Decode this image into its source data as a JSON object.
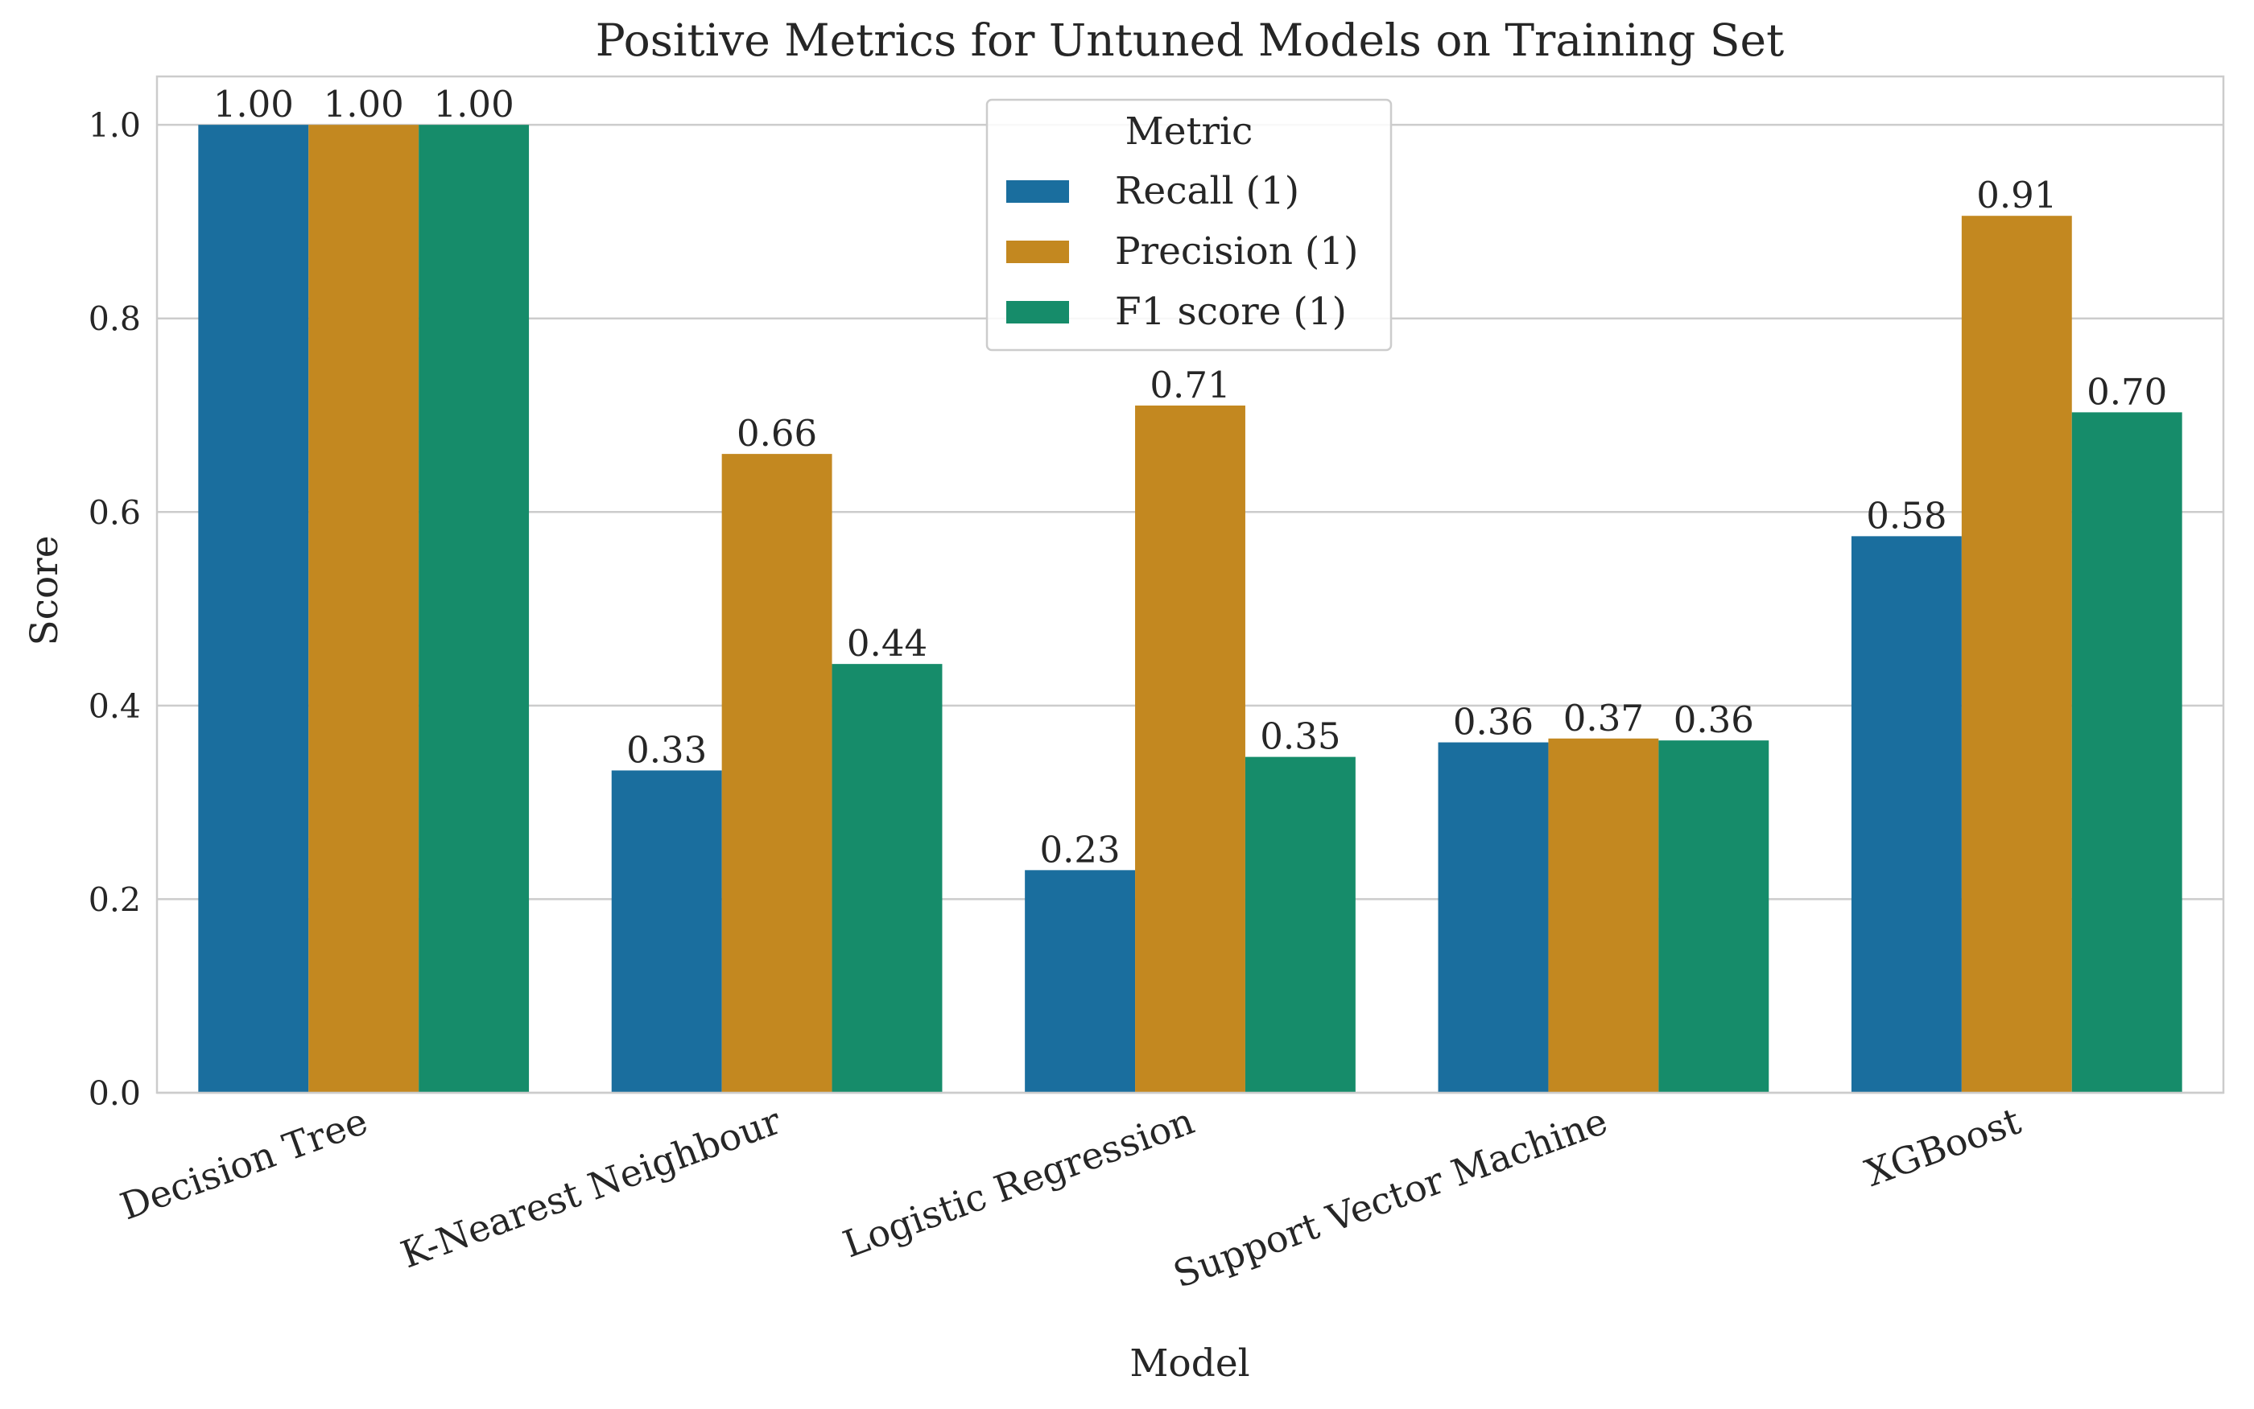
{
  "chart_data": {
    "type": "bar",
    "title": "Positive Metrics for Untuned Models on Training Set",
    "xlabel": "Model",
    "ylabel": "Score",
    "ylim": [
      0,
      1.05
    ],
    "yticks": [
      "0.0",
      "0.2",
      "0.4",
      "0.6",
      "0.8",
      "1.0"
    ],
    "ytick_values": [
      0,
      0.2,
      0.4,
      0.6,
      0.8,
      1.0
    ],
    "grid": "horizontal",
    "categories": [
      "Decision Tree",
      "K-Nearest Neighbour",
      "Logistic Regression",
      "Support Vector Machine",
      "XGBoost"
    ],
    "legend": {
      "title": "Metric",
      "placement": "top-center"
    },
    "series": [
      {
        "name": "Recall (1)",
        "color": "#1a6e9e",
        "values": [
          1.0,
          0.333,
          0.23,
          0.362,
          0.575
        ],
        "labels": [
          "1.00",
          "0.33",
          "0.23",
          "0.36",
          "0.58"
        ]
      },
      {
        "name": "Precision (1)",
        "color": "#c38820",
        "values": [
          1.0,
          0.66,
          0.71,
          0.366,
          0.906
        ],
        "labels": [
          "1.00",
          "0.66",
          "0.71",
          "0.37",
          "0.91"
        ]
      },
      {
        "name": "F1 score (1)",
        "color": "#168c6a",
        "values": [
          1.0,
          0.443,
          0.347,
          0.364,
          0.703
        ],
        "labels": [
          "1.00",
          "0.44",
          "0.35",
          "0.36",
          "0.70"
        ]
      }
    ]
  }
}
